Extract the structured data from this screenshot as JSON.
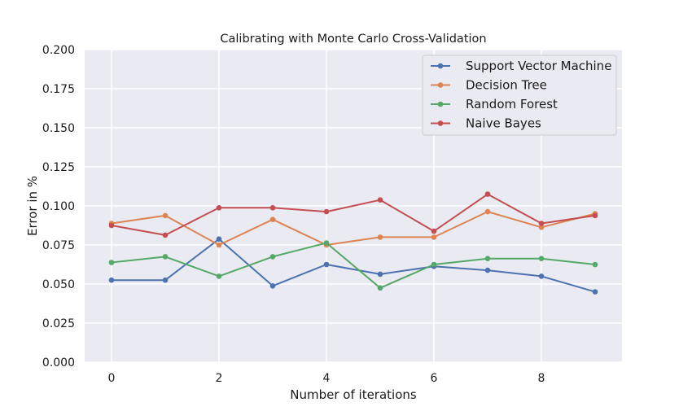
{
  "chart_data": {
    "type": "line",
    "title": "Calibrating with Monte Carlo Cross-Validation",
    "xlabel": "Number of iterations",
    "ylabel": "Error in %",
    "x": [
      0,
      1,
      2,
      3,
      4,
      5,
      6,
      7,
      8,
      9
    ],
    "xlim": [
      -0.5,
      9.5
    ],
    "ylim": [
      0.0,
      0.2
    ],
    "xticks": [
      0,
      2,
      4,
      6,
      8
    ],
    "xtick_labels": [
      "0",
      "2",
      "4",
      "6",
      "8"
    ],
    "yticks": [
      0.0,
      0.025,
      0.05,
      0.075,
      0.1,
      0.125,
      0.15,
      0.175,
      0.2
    ],
    "ytick_labels": [
      "0.000",
      "0.025",
      "0.050",
      "0.075",
      "0.100",
      "0.125",
      "0.150",
      "0.175",
      "0.200"
    ],
    "grid": true,
    "legend_position": "top-right",
    "series": [
      {
        "name": "Support Vector Machine",
        "color": "#4c72b0",
        "values": [
          0.0525,
          0.0525,
          0.0788,
          0.0488,
          0.0625,
          0.0563,
          0.0613,
          0.0588,
          0.055,
          0.045
        ]
      },
      {
        "name": "Decision Tree",
        "color": "#dd8452",
        "values": [
          0.0888,
          0.0938,
          0.075,
          0.0913,
          0.075,
          0.08,
          0.08,
          0.0963,
          0.0863,
          0.095
        ]
      },
      {
        "name": "Random Forest",
        "color": "#55a868",
        "values": [
          0.0638,
          0.0675,
          0.055,
          0.0675,
          0.0763,
          0.0475,
          0.0625,
          0.0663,
          0.0663,
          0.0625
        ]
      },
      {
        "name": "Naive Bayes",
        "color": "#c44e52",
        "values": [
          0.0875,
          0.0813,
          0.0988,
          0.0988,
          0.0963,
          0.1038,
          0.0838,
          0.1075,
          0.0888,
          0.0938
        ]
      }
    ]
  }
}
